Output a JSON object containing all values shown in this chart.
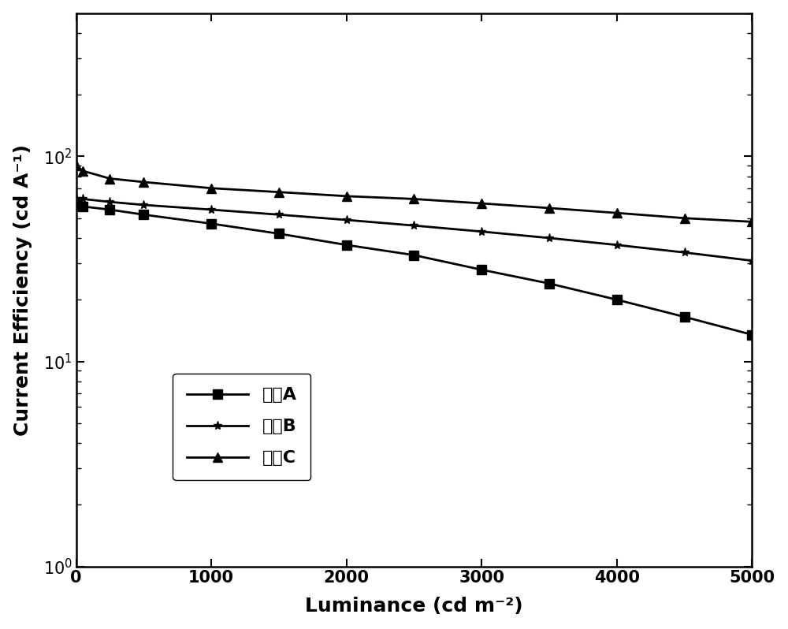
{
  "title": "",
  "xlabel": "Luminance (cd m⁻²)",
  "ylabel": "Current Efficiency (cd A⁻¹)",
  "xlim": [
    0,
    5000
  ],
  "ylim": [
    1,
    500
  ],
  "xticks": [
    0,
    1000,
    2000,
    3000,
    4000,
    5000
  ],
  "series": [
    {
      "label": "器件A",
      "marker": "s",
      "x": [
        5,
        50,
        250,
        500,
        1000,
        1500,
        2000,
        2500,
        3000,
        3500,
        4000,
        4500,
        5000
      ],
      "y": [
        58,
        57,
        55,
        52,
        47,
        42,
        37,
        33,
        28,
        24,
        20,
        16.5,
        13.5
      ]
    },
    {
      "label": "器件B",
      "marker": "*",
      "x": [
        5,
        50,
        250,
        500,
        1000,
        1500,
        2000,
        2500,
        3000,
        3500,
        4000,
        4500,
        5000
      ],
      "y": [
        62,
        62,
        60,
        58,
        55,
        52,
        49,
        46,
        43,
        40,
        37,
        34,
        31
      ]
    },
    {
      "label": "器件C",
      "marker": "^",
      "x": [
        5,
        50,
        250,
        500,
        1000,
        1500,
        2000,
        2500,
        3000,
        3500,
        4000,
        4500,
        5000
      ],
      "y": [
        90,
        85,
        78,
        75,
        70,
        67,
        64,
        62,
        59,
        56,
        53,
        50,
        48
      ]
    }
  ],
  "line_color": "#000000",
  "marker_color": "#000000",
  "background_color": "#ffffff",
  "legend_fontsize": 16,
  "axis_label_fontsize": 18,
  "tick_fontsize": 15,
  "linewidth": 2.0,
  "markersize": 8
}
